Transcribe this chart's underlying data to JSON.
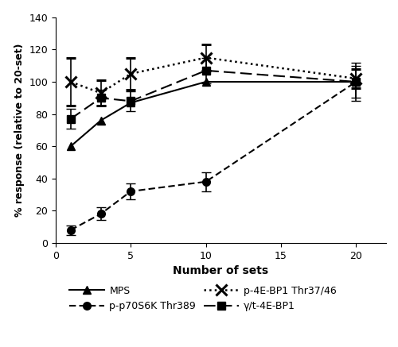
{
  "x": [
    1,
    3,
    5,
    10,
    20
  ],
  "MPS_y": [
    60,
    76,
    87,
    100,
    100
  ],
  "p4EBP1_y": [
    100,
    93,
    105,
    115,
    102
  ],
  "p4EBP1_yerr": [
    15,
    8,
    10,
    8,
    6
  ],
  "pp70S6K_y": [
    8,
    18,
    32,
    38,
    100
  ],
  "pp70S6K_yerr": [
    3,
    4,
    5,
    6,
    12
  ],
  "gt4EBP1_y": [
    77,
    90,
    88,
    107,
    100
  ],
  "gt4EBP1_yerr": [
    6,
    5,
    6,
    8,
    10
  ],
  "xlabel": "Number of sets",
  "ylabel": "% response (relative to 20-set)",
  "xlim": [
    0,
    22
  ],
  "ylim": [
    0,
    140
  ],
  "yticks": [
    0,
    20,
    40,
    60,
    80,
    100,
    120,
    140
  ],
  "xticks": [
    0,
    5,
    10,
    15,
    20
  ],
  "legend_MPS": "MPS",
  "legend_p4EBP1": "p-4E-BP1 Thr37/46",
  "legend_pp70S6K": "p-p70S6K Thr389",
  "legend_gt4EBP1": "γ/t-4E-BP1",
  "color": "#000000"
}
